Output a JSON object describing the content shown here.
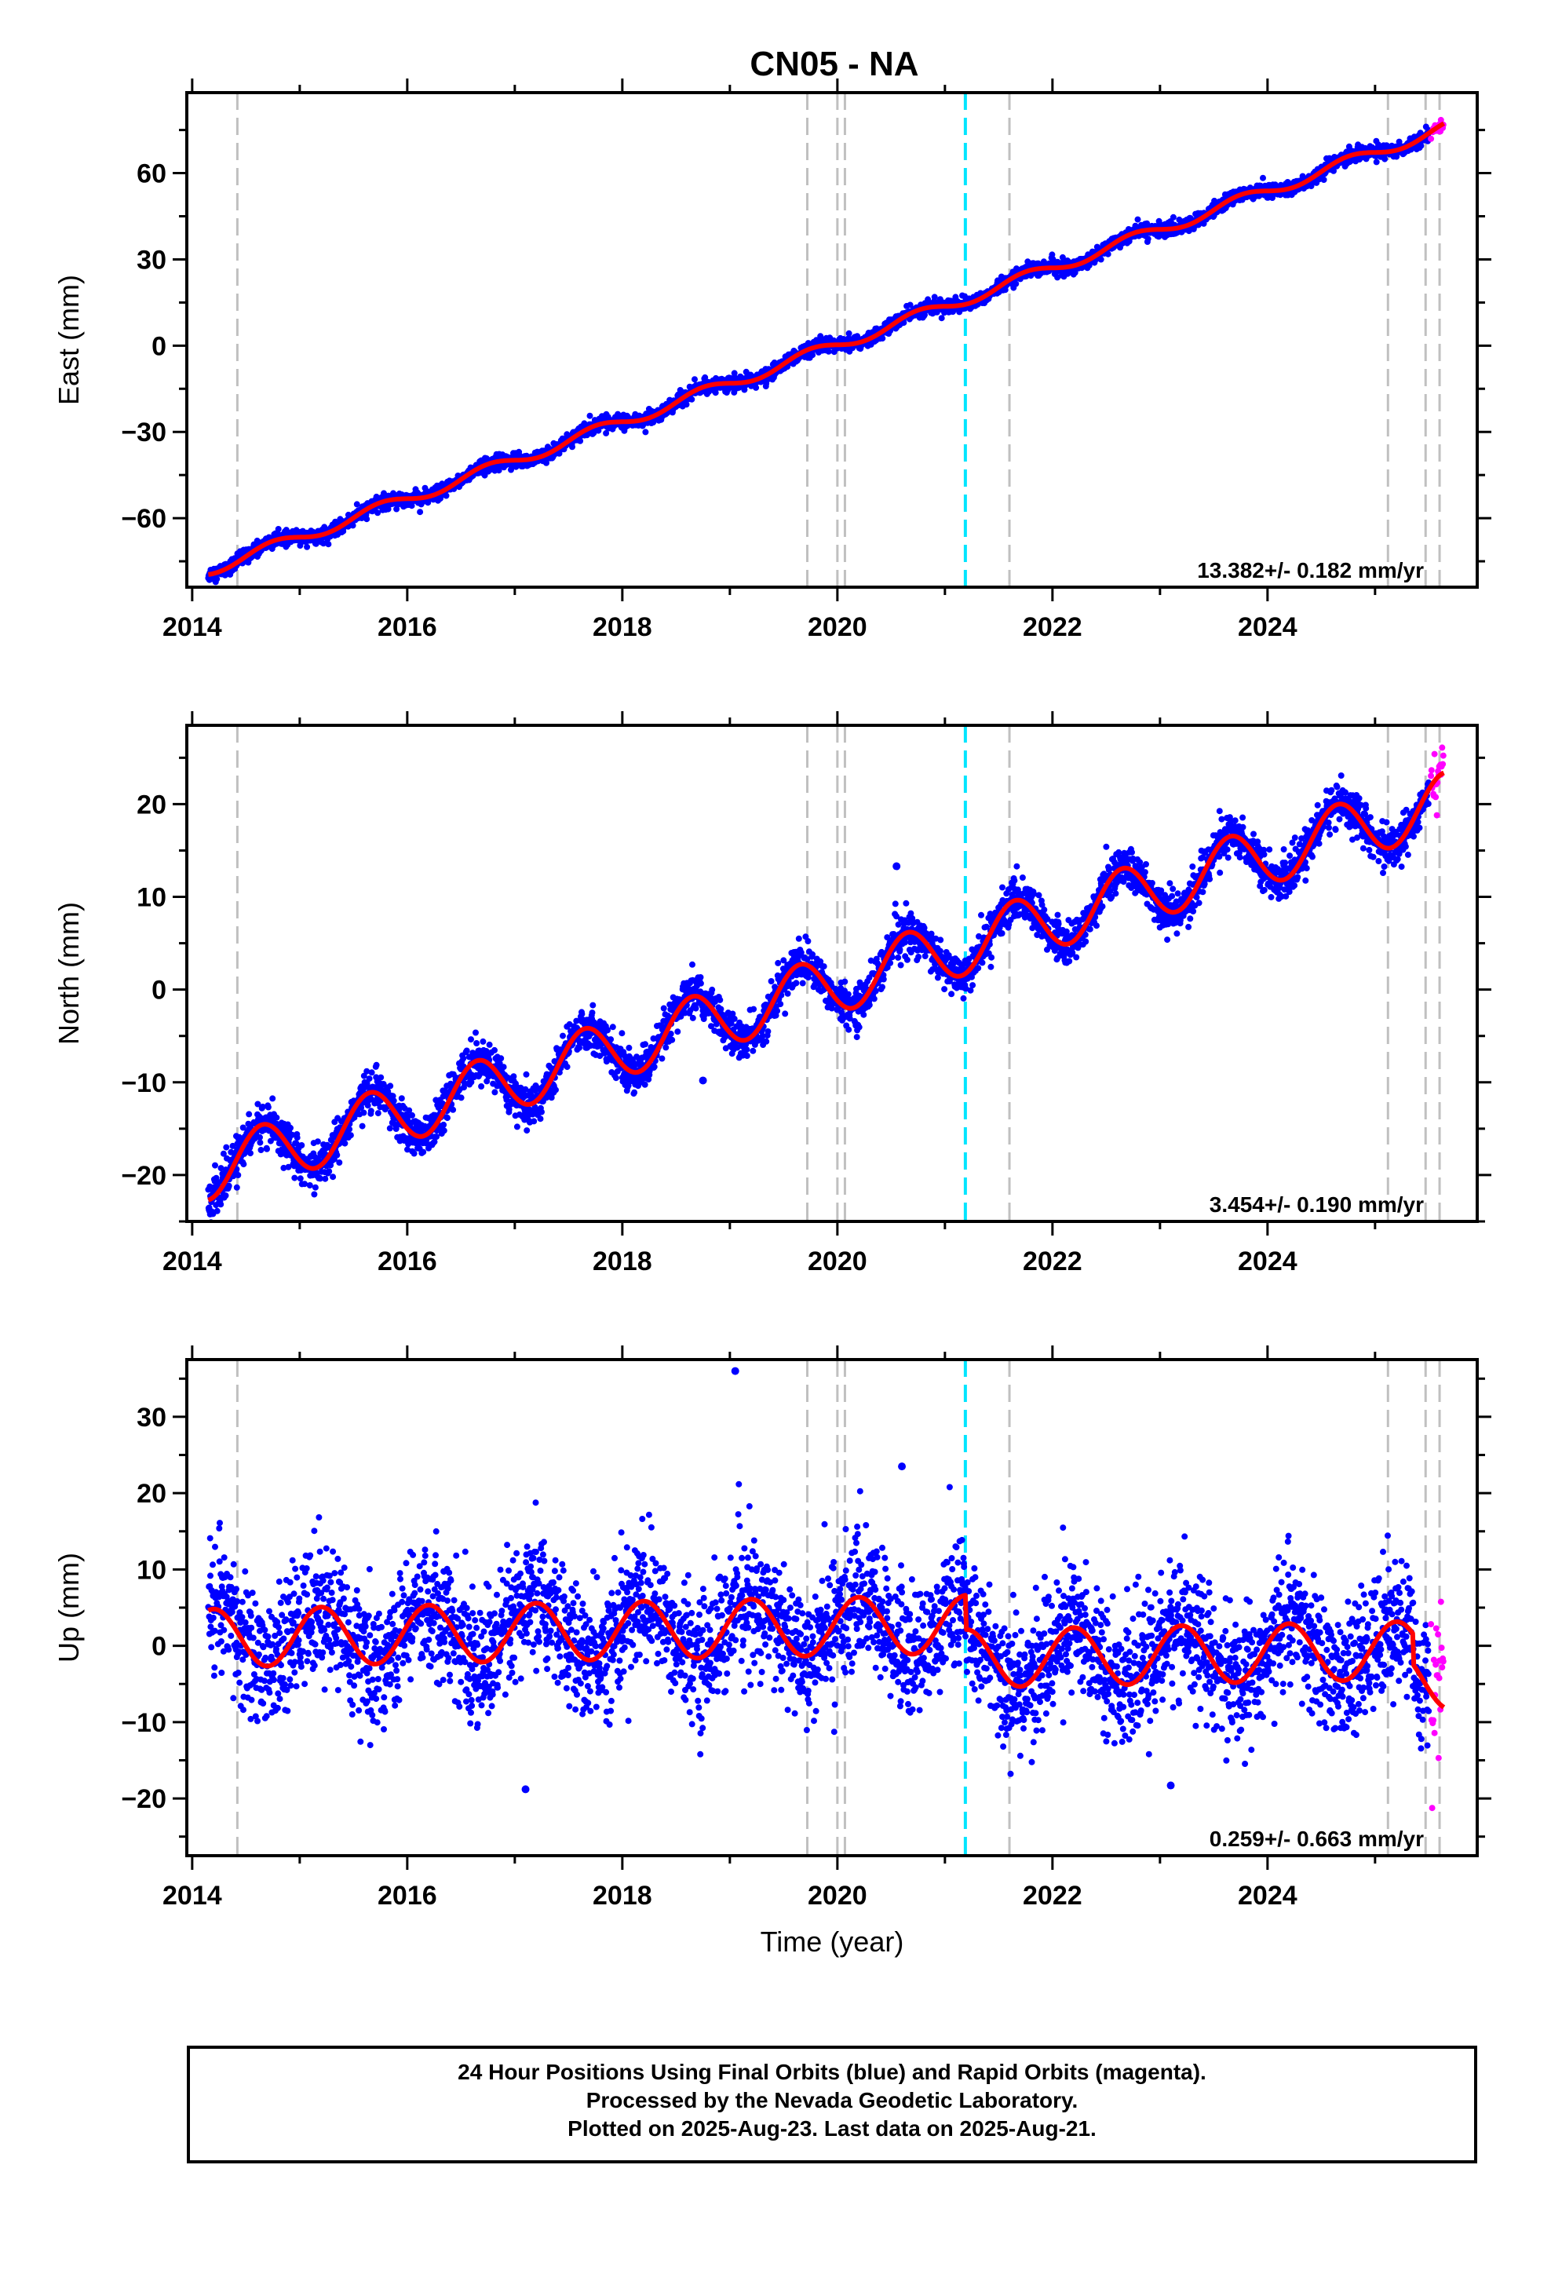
{
  "title": "CN05 - NA",
  "x_axis_label": "Time (year)",
  "caption_lines": [
    "24 Hour Positions Using Final Orbits (blue) and Rapid Orbits (magenta).",
    "Processed by the Nevada Geodetic Laboratory.",
    "Plotted on 2025-Aug-23. Last data on 2025-Aug-21."
  ],
  "colors": {
    "final_orbits": "#0000ff",
    "rapid_orbits": "#ff00ff",
    "model_fit": "#ff0000",
    "equipment_change_lines": "#c0c0c0",
    "earthquake_line": "#00e5ff"
  },
  "chart_data": [
    {
      "type": "scatter",
      "component": "east",
      "ylabel": "East (mm)",
      "xlim": [
        2013.95,
        2025.95
      ],
      "ylim": [
        -84,
        88
      ],
      "x_ticks": [
        2014,
        2016,
        2018,
        2020,
        2022,
        2024
      ],
      "y_ticks": [
        -60,
        -30,
        0,
        30,
        60
      ],
      "tick_labels": [
        "−60",
        "−30",
        "0",
        "30",
        "60"
      ],
      "rate_label": "13.382+/- 0.182 mm/yr",
      "trend": {
        "t0": 2014.15,
        "y0": -78,
        "rate": 13.382
      },
      "annual": {
        "amplitude": 2.0,
        "phase": 0.5
      },
      "noise_std": 1.2,
      "final_range": [
        2014.15,
        2025.5
      ],
      "rapid_range": [
        2025.52,
        2025.64
      ],
      "offsets": [],
      "outliers": []
    },
    {
      "type": "scatter",
      "component": "north",
      "ylabel": "North (mm)",
      "xlim": [
        2013.95,
        2025.95
      ],
      "ylim": [
        -25,
        28.5
      ],
      "x_ticks": [
        2014,
        2016,
        2018,
        2020,
        2022,
        2024
      ],
      "y_ticks": [
        -20,
        -10,
        0,
        10,
        20
      ],
      "tick_labels": [
        "−20",
        "−10",
        "0",
        "10",
        "20"
      ],
      "rate_label": "3.454+/- 0.190 mm/yr",
      "trend": {
        "t0": 2014.15,
        "y0": -19.5,
        "rate": 3.454
      },
      "annual": {
        "amplitude": 3.2,
        "phase": 0.4
      },
      "noise_std": 1.1,
      "final_range": [
        2014.15,
        2025.5
      ],
      "rapid_range": [
        2025.52,
        2025.64
      ],
      "offsets": [],
      "outliers": [
        [
          2020.55,
          13.3
        ],
        [
          2018.75,
          -9.8
        ]
      ]
    },
    {
      "type": "scatter",
      "component": "up",
      "ylabel": "Up (mm)",
      "xlim": [
        2013.95,
        2025.95
      ],
      "ylim": [
        -27.5,
        37.5
      ],
      "x_ticks": [
        2014,
        2016,
        2018,
        2020,
        2022,
        2024
      ],
      "y_ticks": [
        -20,
        -10,
        0,
        10,
        20,
        30
      ],
      "tick_labels": [
        "−20",
        "−10",
        "0",
        "10",
        "20",
        "30"
      ],
      "rate_label": "0.259+/- 0.663 mm/yr",
      "trend": {
        "t0": 2014.15,
        "y0": 1.0,
        "rate": 0.259
      },
      "annual": {
        "amplitude": 3.8,
        "phase": 0.95
      },
      "noise_std": 4.2,
      "final_range": [
        2014.15,
        2025.5
      ],
      "rapid_range": [
        2025.52,
        2025.64
      ],
      "offsets": [
        [
          2021.19,
          -4.5
        ],
        [
          2025.35,
          -4.0
        ]
      ],
      "outliers": [
        [
          2019.05,
          36.0
        ],
        [
          2020.6,
          23.5
        ],
        [
          2017.1,
          -18.8
        ],
        [
          2023.1,
          -18.3
        ]
      ]
    }
  ],
  "vertical_lines": {
    "equipment_changes": [
      2014.42,
      2019.72,
      2020.0,
      2020.07,
      2021.6,
      2025.12,
      2025.47,
      2025.6
    ],
    "earthquakes": [
      2021.19
    ]
  }
}
